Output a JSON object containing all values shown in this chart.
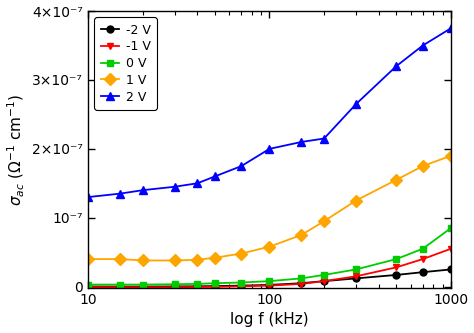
{
  "title": "",
  "xlabel": "log f (kHz)",
  "ylabel": "σac (Ω⁻¹ cm⁻¹)",
  "xlim": [
    10,
    1000
  ],
  "ylim": [
    -2e-09,
    4e-07
  ],
  "frequencies": [
    10,
    15,
    20,
    30,
    40,
    50,
    70,
    100,
    150,
    200,
    300,
    500,
    700,
    1000
  ],
  "series": {
    "-2 V": {
      "color": "black",
      "marker": "o",
      "values": [
        2e-10,
        1e-10,
        1e-10,
        3e-10,
        5e-10,
        8e-10,
        1.5e-09,
        2.5e-09,
        5e-09,
        8e-09,
        1.2e-08,
        1.7e-08,
        2.1e-08,
        2.5e-08
      ]
    },
    "-1 V": {
      "color": "red",
      "marker": "v",
      "values": [
        -5e-10,
        -8e-10,
        -8e-10,
        -8e-10,
        -5e-10,
        -3e-10,
        5e-10,
        1.5e-09,
        4e-09,
        8e-09,
        1.5e-08,
        2.8e-08,
        4e-08,
        5.5e-08
      ]
    },
    "0 V": {
      "color": "#00cc00",
      "marker": "s",
      "values": [
        3e-09,
        3e-09,
        3e-09,
        3.5e-09,
        4e-09,
        5e-09,
        6e-09,
        8e-09,
        1.2e-08,
        1.7e-08,
        2.5e-08,
        4e-08,
        5.5e-08,
        8.5e-08
      ]
    },
    "1 V": {
      "color": "orange",
      "marker": "D",
      "values": [
        4e-08,
        4e-08,
        3.8e-08,
        3.8e-08,
        3.9e-08,
        4.2e-08,
        4.8e-08,
        5.8e-08,
        7.5e-08,
        9.5e-08,
        1.25e-07,
        1.55e-07,
        1.75e-07,
        1.9e-07
      ]
    },
    "2 V": {
      "color": "blue",
      "marker": "^",
      "values": [
        1.3e-07,
        1.35e-07,
        1.4e-07,
        1.45e-07,
        1.5e-07,
        1.6e-07,
        1.75e-07,
        2e-07,
        2.1e-07,
        2.15e-07,
        2.65e-07,
        3.2e-07,
        3.5e-07,
        3.75e-07
      ]
    }
  },
  "yticks": [
    0,
    1e-07,
    2e-07,
    3e-07,
    4e-07
  ],
  "ytick_labels": [
    "0",
    "10⁻⁷",
    "2×10⁻⁷",
    "3×10⁻⁷",
    "4×10⁻⁷"
  ],
  "xticks": [
    10,
    100,
    1000
  ],
  "background_color": "#ffffff",
  "legend_fontsize": 9,
  "axis_fontsize": 11,
  "tick_fontsize": 10
}
